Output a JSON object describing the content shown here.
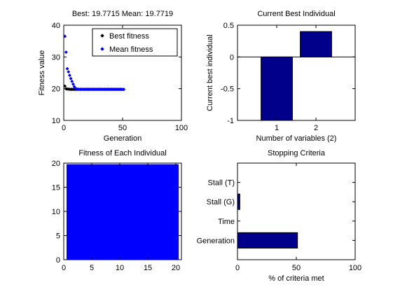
{
  "window": {
    "title": ""
  },
  "chart_data": [
    {
      "type": "scatter",
      "title": "Best: 19.7715 Mean: 19.7719",
      "xlabel": "Generation",
      "ylabel": "Fitness value",
      "xlim": [
        0,
        100
      ],
      "ylim": [
        10,
        40
      ],
      "xticks": [
        0,
        50,
        100
      ],
      "yticks": [
        10,
        20,
        30,
        40
      ],
      "legend": {
        "placement": "top-right"
      },
      "series": [
        {
          "name": "Best fitness",
          "color": "#000000",
          "marker": "diamond",
          "x": [
            1,
            2,
            3,
            4,
            5,
            6,
            7,
            8,
            9,
            10,
            11,
            12,
            13,
            14,
            15,
            16,
            17,
            18,
            19,
            20,
            21,
            22,
            23,
            24,
            25,
            26,
            27,
            28,
            29,
            30,
            31,
            32,
            33,
            34,
            35,
            36,
            37,
            38,
            39,
            40,
            41,
            42,
            43,
            44,
            45,
            46,
            47,
            48,
            49,
            50,
            51
          ],
          "y": [
            20.8,
            19.95,
            19.9,
            19.85,
            19.8,
            19.8,
            19.79,
            19.78,
            19.78,
            19.78,
            19.78,
            19.78,
            19.78,
            19.78,
            19.78,
            19.78,
            19.78,
            19.78,
            19.78,
            19.78,
            19.78,
            19.78,
            19.78,
            19.78,
            19.78,
            19.78,
            19.78,
            19.78,
            19.78,
            19.78,
            19.78,
            19.78,
            19.78,
            19.78,
            19.78,
            19.78,
            19.78,
            19.78,
            19.78,
            19.78,
            19.78,
            19.78,
            19.78,
            19.78,
            19.78,
            19.78,
            19.78,
            19.78,
            19.78,
            19.77,
            19.77
          ]
        },
        {
          "name": "Mean fitness",
          "color": "#0000ff",
          "marker": "diamond",
          "x": [
            1,
            2,
            3,
            4,
            5,
            6,
            7,
            8,
            9,
            10,
            11,
            12,
            13,
            14,
            15,
            16,
            17,
            18,
            19,
            20,
            21,
            22,
            23,
            24,
            25,
            26,
            27,
            28,
            29,
            30,
            31,
            32,
            33,
            34,
            35,
            36,
            37,
            38,
            39,
            40,
            41,
            42,
            43,
            44,
            45,
            46,
            47,
            48,
            49,
            50,
            51
          ],
          "y": [
            36.5,
            31.5,
            26.3,
            25.3,
            24.2,
            23.2,
            22.3,
            21.4,
            20.6,
            20.0,
            19.9,
            19.85,
            19.8,
            19.8,
            19.8,
            19.8,
            19.8,
            19.8,
            19.8,
            19.8,
            19.8,
            19.8,
            19.8,
            19.8,
            19.8,
            19.8,
            19.8,
            19.8,
            19.8,
            19.8,
            19.8,
            19.8,
            19.8,
            19.8,
            19.8,
            19.8,
            19.8,
            19.8,
            19.8,
            19.8,
            19.8,
            19.8,
            19.8,
            19.8,
            19.8,
            19.8,
            19.8,
            19.8,
            19.8,
            19.77,
            19.77
          ]
        }
      ]
    },
    {
      "type": "bar",
      "title": "Current Best Individual",
      "xlabel": "Number of variables (2)",
      "ylabel": "Current best individual",
      "categories": [
        "1",
        "2"
      ],
      "values": [
        -1.0,
        0.4
      ],
      "ylim": [
        -1,
        0.5
      ],
      "yticks": [
        -1,
        -0.5,
        0,
        0.5
      ],
      "ytick_labels": [
        "-1",
        "-0.5",
        "0",
        "0.5"
      ],
      "bar_color": "#00008b"
    },
    {
      "type": "bar",
      "title": "Fitness of Each Individual",
      "xlabel": "",
      "ylabel": "",
      "xlim": [
        0,
        21
      ],
      "ylim": [
        0,
        20
      ],
      "xticks": [
        0,
        5,
        10,
        15,
        20
      ],
      "yticks": [
        0,
        5,
        10,
        15,
        20
      ],
      "categories": [
        1,
        2,
        3,
        4,
        5,
        6,
        7,
        8,
        9,
        10,
        11,
        12,
        13,
        14,
        15,
        16,
        17,
        18,
        19,
        20
      ],
      "values": [
        19.77,
        19.77,
        19.77,
        19.77,
        19.77,
        19.77,
        19.77,
        19.77,
        19.77,
        19.77,
        19.77,
        19.77,
        19.77,
        19.77,
        19.77,
        19.77,
        19.77,
        19.77,
        19.77,
        19.77
      ],
      "bar_color": "#0000ff"
    },
    {
      "type": "bar",
      "orientation": "horizontal",
      "title": "Stopping Criteria",
      "xlabel": "% of criteria met",
      "ylabel": "",
      "categories": [
        "Generation",
        "Time",
        "Stall (G)",
        "Stall (T)"
      ],
      "values": [
        51,
        0,
        2,
        0
      ],
      "xlim": [
        0,
        100
      ],
      "xticks": [
        0,
        50,
        100
      ],
      "bar_color": "#00008b"
    }
  ]
}
